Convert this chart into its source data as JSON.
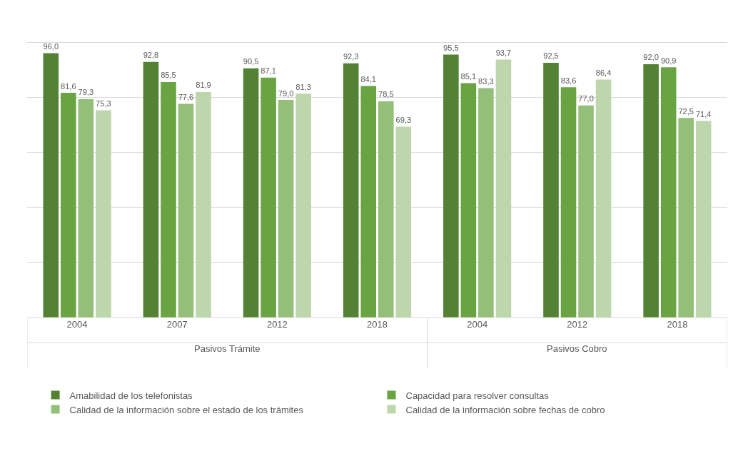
{
  "chart_data": {
    "type": "bar",
    "categories": [
      "2004",
      "2007",
      "2012",
      "2018",
      "2004",
      "2012",
      "2018"
    ],
    "annotations": [
      "Pasivos Trámite",
      "Pasivos Cobro"
    ],
    "series": [
      {
        "name": "Amabilidad de los telefonistas",
        "color": "#548235",
        "values": [
          96.0,
          92.8,
          90.5,
          92.3,
          95.5,
          92.5,
          92.0
        ],
        "value_labels": [
          "96,0",
          "92,8",
          "90,5",
          "92,3",
          "95,5",
          "92,5",
          "92,0"
        ]
      },
      {
        "name": "Capacidad para resolver consultas",
        "color": "#6aa442",
        "values": [
          81.6,
          85.5,
          87.1,
          84.1,
          85.1,
          83.6,
          90.9
        ],
        "value_labels": [
          "81,6",
          "85,5",
          "87,1",
          "84,1",
          "85,1",
          "83,6",
          "90,9"
        ]
      },
      {
        "name": "Calidad de la información sobre el estado de los trámites",
        "color": "#93bf78",
        "values": [
          79.3,
          77.6,
          79.0,
          78.5,
          83.3,
          77.0,
          72.5
        ],
        "value_labels": [
          "79,3",
          "77,6",
          "79,0",
          "78,5",
          "83,3",
          "77,0",
          "72,5"
        ]
      },
      {
        "name": "Calidad de la información sobre fechas de cobro",
        "color": "#bdd6ac",
        "values": [
          75.3,
          81.9,
          81.3,
          69.3,
          93.7,
          86.4,
          71.4
        ],
        "value_labels": [
          "75,3",
          "81,9",
          "81,3",
          "69,3",
          "93,7",
          "86,4",
          "71,4"
        ]
      }
    ],
    "grid": "y",
    "legend": "bottom",
    "tick_labels": "x"
  }
}
